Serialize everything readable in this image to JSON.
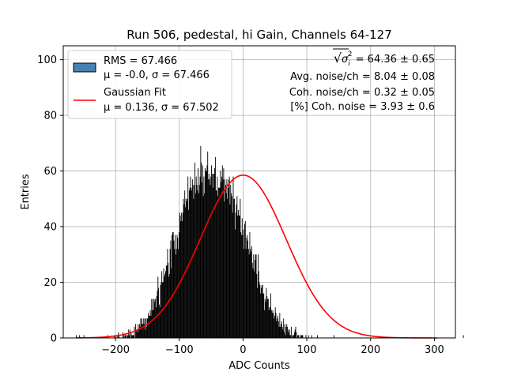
{
  "chart_data": {
    "type": "bar",
    "title": "Run 506, pedestal, hi Gain, Channels 64-127",
    "xlabel": "ADC Counts",
    "ylabel": "Entries",
    "xlim": [
      -282,
      333
    ],
    "ylim": [
      0,
      105
    ],
    "x_ticks": [
      -200,
      -100,
      0,
      100,
      200,
      300
    ],
    "y_ticks": [
      0,
      20,
      40,
      60,
      80,
      100
    ],
    "x_tick_labels": [
      "−200",
      "−100",
      "0",
      "100",
      "200",
      "300"
    ],
    "y_tick_labels": [
      "0",
      "20",
      "40",
      "60",
      "80",
      "100"
    ],
    "grid": true,
    "legend_position": "top-left",
    "histogram": {
      "name_lines": [
        "RMS = 67.466",
        "μ = -0.0, σ = 67.466"
      ],
      "color": "#000000",
      "legend_patch_color": "#4682b4",
      "range": [
        -262,
        305
      ],
      "bin_width": 1,
      "counts": [
        1,
        0,
        0,
        0,
        0,
        1,
        0,
        0,
        0,
        0,
        0,
        0,
        1,
        0,
        0,
        0,
        0,
        0,
        0,
        0,
        0,
        0,
        0,
        0,
        0,
        0,
        0,
        0,
        0,
        0,
        0,
        0,
        0,
        0,
        0,
        0,
        0,
        0,
        0,
        0,
        0,
        0,
        0,
        0,
        0,
        0,
        0,
        0,
        0,
        1,
        0,
        0,
        0,
        0,
        0,
        0,
        0,
        0,
        0,
        0,
        1,
        1,
        0,
        0,
        1,
        0,
        2,
        1,
        0,
        0,
        0,
        0,
        0,
        2,
        1,
        0,
        1,
        1,
        1,
        0,
        1,
        1,
        3,
        1,
        3,
        0,
        2,
        1,
        1,
        1,
        1,
        4,
        0,
        5,
        3,
        3,
        2,
        5,
        3,
        5,
        4,
        7,
        7,
        5,
        5,
        7,
        5,
        7,
        3,
        7,
        4,
        7,
        7,
        9,
        8,
        8,
        10,
        8,
        14,
        10,
        14,
        10,
        14,
        13,
        14,
        11,
        15,
        17,
        22,
        18,
        12,
        11,
        19,
        20,
        24,
        20,
        20,
        25,
        22,
        23,
        24,
        26,
        26,
        32,
        27,
        22,
        23,
        32,
        35,
        25,
        37,
        38,
        38,
        35,
        32,
        37,
        30,
        32,
        37,
        36,
        32,
        38,
        45,
        44,
        42,
        45,
        42,
        45,
        50,
        48,
        53,
        47,
        50,
        49,
        50,
        58,
        46,
        53,
        54,
        58,
        54,
        53,
        57,
        55,
        50,
        55,
        63,
        52,
        58,
        55,
        53,
        61,
        52,
        55,
        58,
        69,
        63,
        56,
        62,
        51,
        58,
        52,
        61,
        60,
        60,
        62,
        67,
        57,
        59,
        57,
        55,
        58,
        62,
        59,
        54,
        59,
        59,
        61,
        65,
        53,
        53,
        58,
        51,
        54,
        54,
        54,
        60,
        56,
        58,
        62,
        57,
        61,
        49,
        57,
        55,
        52,
        57,
        50,
        54,
        57,
        58,
        48,
        55,
        52,
        51,
        45,
        58,
        50,
        50,
        39,
        45,
        48,
        51,
        44,
        46,
        44,
        44,
        50,
        38,
        37,
        43,
        37,
        39,
        32,
        41,
        42,
        32,
        36,
        37,
        35,
        32,
        30,
        38,
        32,
        31,
        33,
        27,
        25,
        30,
        24,
        28,
        30,
        30,
        23,
        18,
        30,
        24,
        20,
        19,
        16,
        18,
        19,
        19,
        16,
        16,
        10,
        14,
        13,
        18,
        15,
        14,
        14,
        10,
        11,
        11,
        16,
        10,
        9,
        10,
        9,
        7,
        8,
        11,
        9,
        6,
        7,
        8,
        6,
        4,
        9,
        4,
        5,
        6,
        4,
        3,
        7,
        2,
        5,
        1,
        4,
        5,
        4,
        2,
        3,
        3,
        1,
        1,
        4,
        0,
        1,
        1,
        1,
        2,
        3,
        4,
        2,
        0,
        1,
        1,
        1,
        0,
        0,
        1,
        1,
        1,
        1,
        0,
        0,
        0,
        0,
        1,
        0,
        0,
        0,
        1,
        0,
        0,
        0,
        0,
        1,
        0,
        0,
        0,
        0,
        0,
        0,
        0,
        0,
        1,
        0,
        0,
        0,
        0,
        0,
        0,
        0,
        0,
        0,
        0,
        0,
        0,
        0,
        0,
        0,
        0,
        0,
        0,
        0,
        0,
        0,
        0,
        0,
        0,
        0,
        1,
        0,
        0,
        0,
        0,
        0,
        0,
        0,
        0,
        0,
        0,
        0,
        0,
        0,
        0,
        0,
        0,
        0,
        0,
        0,
        0,
        0,
        0,
        0,
        0,
        0,
        0,
        0,
        0,
        0,
        0,
        0,
        0,
        0,
        0,
        0,
        0,
        0,
        0,
        0,
        0,
        0,
        0,
        0,
        0,
        0,
        0,
        0,
        0,
        0,
        0,
        0,
        0,
        0,
        0,
        0,
        0,
        0,
        0,
        0,
        0,
        0,
        0,
        0,
        0,
        0,
        0,
        0,
        0,
        0,
        0,
        0,
        0,
        0,
        0,
        0,
        0,
        0,
        0,
        0,
        0,
        0,
        0,
        0,
        0,
        0,
        0,
        0,
        0,
        0,
        0,
        0,
        0,
        0,
        0,
        0,
        0,
        0,
        0,
        0,
        0,
        0,
        0,
        0,
        0,
        0,
        0,
        0,
        0,
        0,
        0,
        0,
        0,
        0,
        0,
        0,
        0,
        0,
        0,
        0,
        0,
        0,
        0,
        0,
        0,
        0,
        0,
        0,
        0,
        0,
        0,
        0,
        0,
        0,
        0,
        0,
        0,
        0,
        0,
        0,
        0,
        0,
        0,
        0,
        0,
        0,
        0,
        0,
        0,
        0,
        0,
        0,
        0,
        0,
        0,
        0,
        0,
        0,
        0,
        0,
        0,
        0,
        0,
        0,
        0,
        0,
        0,
        0,
        0,
        0,
        0,
        0,
        0,
        0,
        0,
        0,
        0,
        0,
        0,
        0,
        0,
        0,
        0,
        0,
        0,
        0,
        0,
        0,
        0,
        0,
        0,
        0,
        0,
        0,
        0,
        0,
        0,
        0,
        0,
        0,
        0,
        0,
        0,
        1,
        0,
        0
      ]
    },
    "gaussian_fit": {
      "name_lines": [
        "Gaussian Fit",
        "μ = 0.136, σ = 67.502"
      ],
      "mu": 0.136,
      "sigma": 67.502,
      "amplitude": 58.5,
      "x_range": [
        -262,
        305
      ],
      "color": "#ff0000"
    },
    "annotations": [
      {
        "prefix": "√",
        "symbol": "σ",
        "sub": "i",
        "sup": "2",
        "rest": " = 64.36 ± 0.65"
      },
      {
        "text": "Avg. noise/ch = 8.04 ± 0.08"
      },
      {
        "text": "Coh. noise/ch = 0.32 ± 0.05"
      },
      {
        "text": "[%] Coh. noise = 3.93 ± 0.6"
      }
    ]
  }
}
